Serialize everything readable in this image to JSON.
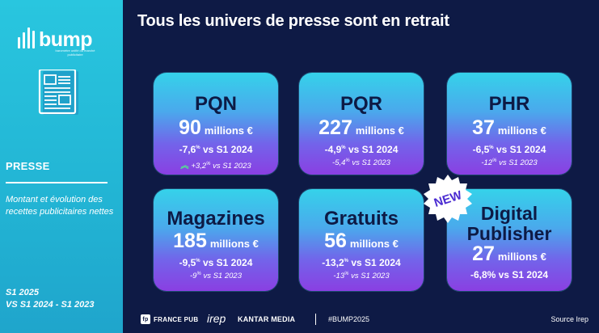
{
  "sidebar": {
    "logo_text": "bump",
    "logo_subtitle": "baromètre unifié du marché publicitaire",
    "section_title": "PRESSE",
    "description": "Montant et évolution des recettes publicitaires nettes",
    "period_line1": "S1 2025",
    "period_line2": "VS S1 2024 - S1 2023"
  },
  "title": "Tous les univers de presse sont en retrait",
  "cards": [
    {
      "name": "PQN",
      "amount": "90",
      "unit": "millions €",
      "var_2024": "-7,6",
      "vs_2024": " vs S1 2024",
      "var_2023": "+3,2",
      "vs_2023": " vs S1 2023"
    },
    {
      "name": "PQR",
      "amount": "227",
      "unit": "millions €",
      "var_2024": "-4,9",
      "vs_2024": " vs S1 2024",
      "var_2023": "-5,4",
      "vs_2023": " vs S1 2023"
    },
    {
      "name": "PHR",
      "amount": "37",
      "unit": "millions €",
      "var_2024": "-6,5",
      "vs_2024": " vs S1 2024",
      "var_2023": "-12",
      "vs_2023": " vs S1 2023"
    },
    {
      "name": "Magazines",
      "amount": "185",
      "unit": "millions €",
      "var_2024": "-9,5",
      "vs_2024": " vs S1 2024",
      "var_2023": "-9",
      "vs_2023": " vs S1 2023"
    },
    {
      "name": "Gratuits",
      "amount": "56",
      "unit": "millions €",
      "var_2024": "-13,2",
      "vs_2024": " vs S1 2024",
      "var_2023": "-13",
      "vs_2023": " vs S1 2023"
    },
    {
      "name_line1": "Digital",
      "name_line2": "Publisher",
      "amount": "27",
      "unit": "millions €",
      "var_2024": "-6,8% vs S1 2024"
    }
  ],
  "percent_sign": "%",
  "new_badge": "NEW",
  "footer": {
    "france_pub": "FRANCE PUB",
    "irep": "irep",
    "kantar": "KANTAR MEDIA",
    "hashtag": "#BUMP2025",
    "source": "Source Irep"
  }
}
